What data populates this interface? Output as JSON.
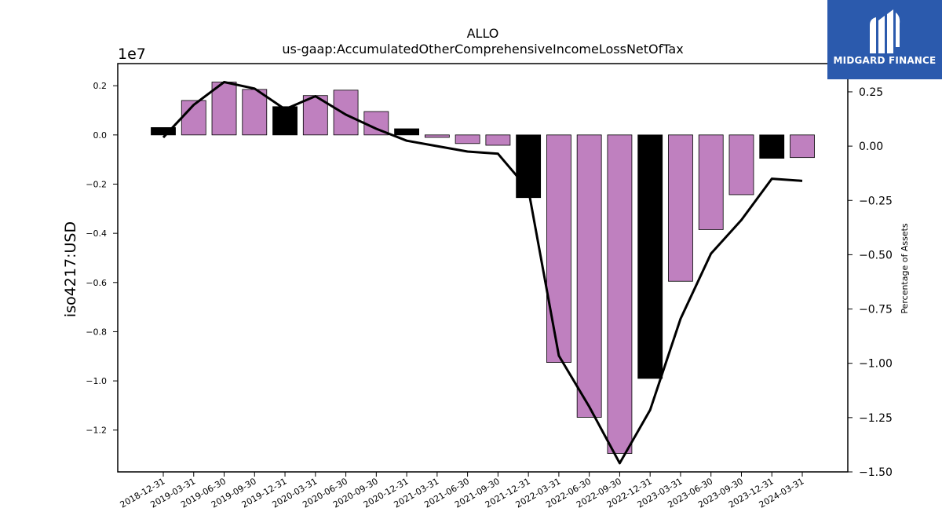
{
  "logo": {
    "text": "MIDGARD FINANCE"
  },
  "colors": {
    "bar_positive": "#bf80bf",
    "bar_highlight": "#000000",
    "line": "#000000",
    "logo_bg": "#2b5aad"
  },
  "chart_data": {
    "type": "bar",
    "title": "ALLO",
    "subtitle": "us-gaap:AccumulatedOtherComprehensiveIncomeLossNetOfTax",
    "ylabel": "iso4217:USD",
    "y2label": "Percentage of Assets",
    "y_offset_label": "1e7",
    "categories": [
      "2018-12-31",
      "2019-03-31",
      "2019-06-30",
      "2019-09-30",
      "2019-12-31",
      "2020-03-31",
      "2020-06-30",
      "2020-09-30",
      "2020-12-31",
      "2021-03-31",
      "2021-06-30",
      "2021-09-30",
      "2021-12-31",
      "2022-03-31",
      "2022-06-30",
      "2022-09-30",
      "2022-12-31",
      "2023-03-31",
      "2023-06-30",
      "2023-09-30",
      "2023-12-31",
      "2024-03-31"
    ],
    "series": [
      {
        "values": [
          0.03,
          0.14,
          0.215,
          0.185,
          0.115,
          0.16,
          0.182,
          0.095,
          0.025,
          -0.01,
          -0.035,
          -0.042,
          -0.255,
          -0.925,
          -1.148,
          -1.295,
          -0.99,
          -0.595,
          -0.385,
          -0.243,
          -0.095,
          -0.092
        ],
        "highlight": [
          true,
          false,
          false,
          false,
          true,
          false,
          false,
          false,
          true,
          false,
          false,
          false,
          true,
          false,
          false,
          false,
          true,
          false,
          false,
          false,
          true,
          false
        ]
      },
      {
        "axis": "right",
        "values": [
          0.04,
          0.19,
          0.295,
          0.265,
          0.17,
          0.23,
          0.145,
          0.08,
          0.025,
          0.0,
          -0.025,
          -0.035,
          -0.2,
          -0.965,
          -1.2,
          -1.46,
          -1.215,
          -0.795,
          -0.495,
          -0.34,
          -0.15,
          -0.16
        ]
      }
    ],
    "ylim": [
      -1.37,
      0.29
    ],
    "y2lim": [
      -1.5,
      0.38
    ],
    "yticks": [
      "−1.2",
      "−1.0",
      "−0.8",
      "−0.6",
      "−0.4",
      "−0.2",
      "0.0",
      "0.2"
    ],
    "ytick_values": [
      -1.2,
      -1.0,
      -0.8,
      -0.6,
      -0.4,
      -0.2,
      0.0,
      0.2
    ],
    "y2ticks": [
      "−1.50",
      "−1.25",
      "−1.00",
      "−0.75",
      "−0.50",
      "−0.25",
      "0.00",
      "0.25"
    ],
    "y2tick_values": [
      -1.5,
      -1.25,
      -1.0,
      -0.75,
      -0.5,
      -0.25,
      0.0,
      0.25
    ],
    "grid": false,
    "legend": "none"
  }
}
